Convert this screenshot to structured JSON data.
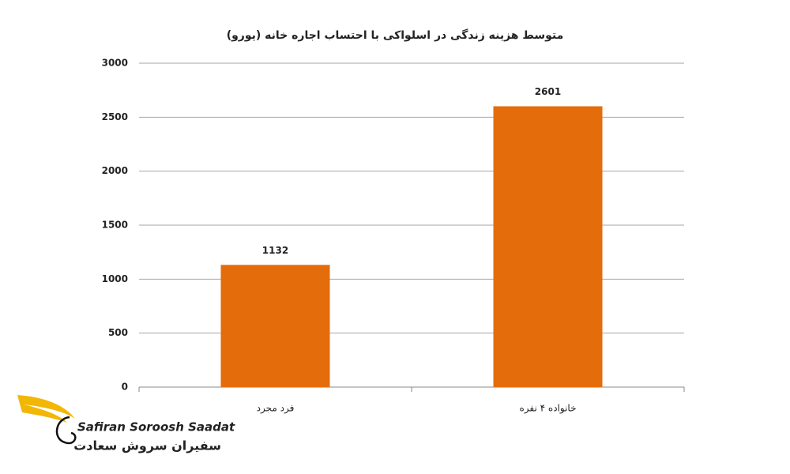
{
  "chart_data": {
    "type": "bar",
    "title": "متوسط هزینه زندگی در اسلواکی با احتساب اجاره خانه (یورو)",
    "categories": [
      "فرد مجرد",
      "خانواده ۴ نفره"
    ],
    "values": [
      1132,
      2601
    ],
    "color": "#e46c0a",
    "ylim": [
      0,
      3000
    ],
    "yticks": [
      0,
      500,
      1000,
      1500,
      2000,
      2500,
      3000
    ],
    "grid": true
  },
  "logo": {
    "name_en": "Safiran Soroosh Saadat",
    "name_fa": "سفیران سروش سعادت"
  }
}
